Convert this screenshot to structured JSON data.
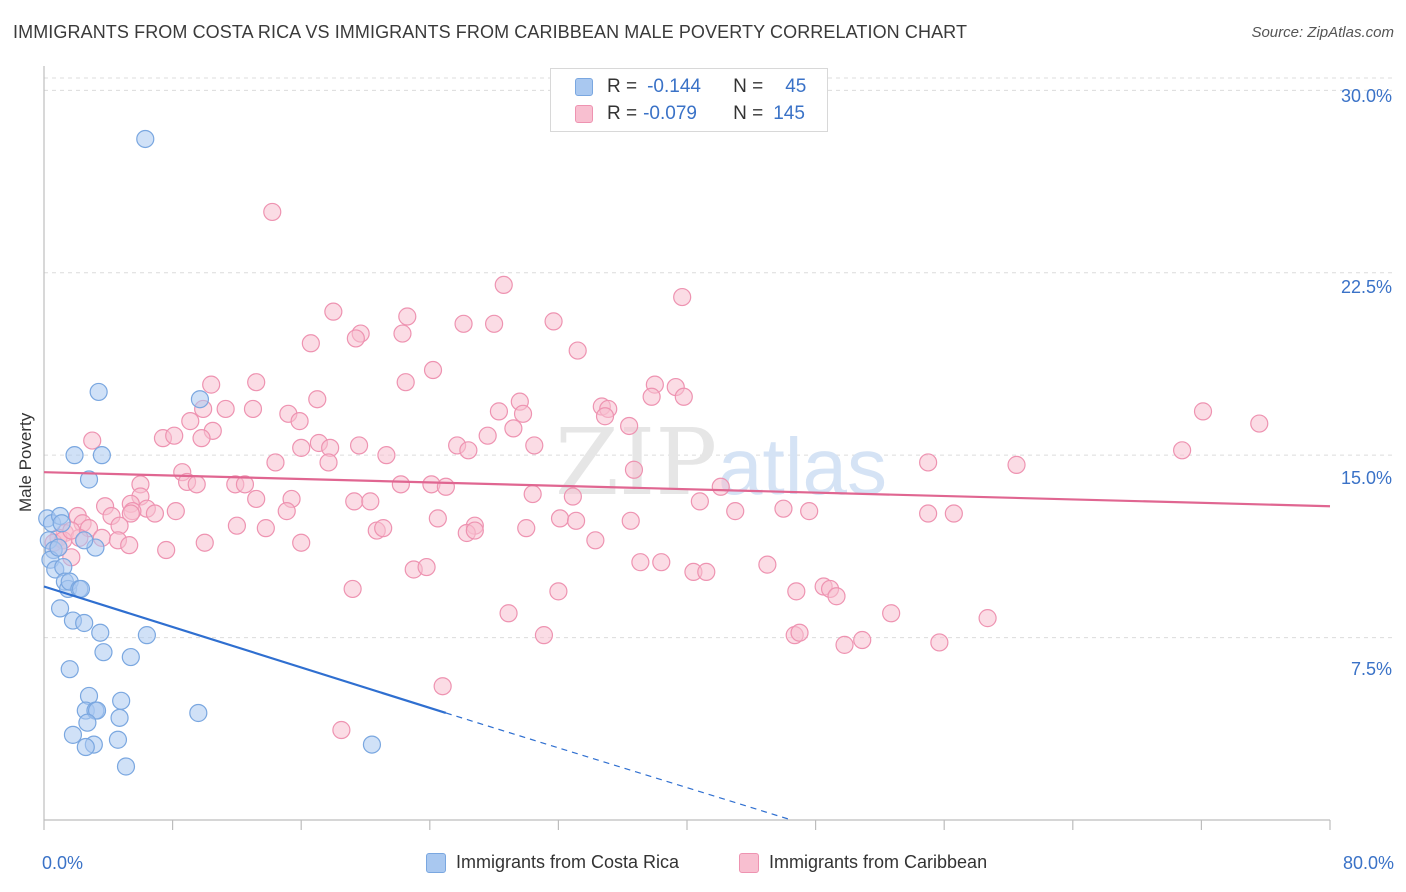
{
  "title": "IMMIGRANTS FROM COSTA RICA VS IMMIGRANTS FROM CARIBBEAN MALE POVERTY CORRELATION CHART",
  "source": "Source: ZipAtlas.com",
  "watermark": {
    "zip": "ZIP",
    "atlas": "atlas"
  },
  "legend": {
    "r_label": "R =",
    "n_label": "N =",
    "series": [
      {
        "r": "-0.144",
        "n": "45",
        "color": "#a9c8f0",
        "border": "#7aa7e0"
      },
      {
        "r": "-0.079",
        "n": "145",
        "color": "#f8bfd0",
        "border": "#ee93b1"
      }
    ]
  },
  "chart_data": {
    "type": "scatter",
    "title": "IMMIGRANTS FROM COSTA RICA VS IMMIGRANTS FROM CARIBBEAN MALE POVERTY CORRELATION CHART",
    "xlabel": "",
    "ylabel": "Male Poverty",
    "xlim": [
      0,
      80
    ],
    "ylim": [
      0,
      31
    ],
    "x_tick_labels": [
      "0.0%",
      "80.0%"
    ],
    "y_ticks": [
      7.5,
      15.0,
      22.5,
      30.0
    ],
    "y_tick_labels": [
      "7.5%",
      "15.0%",
      "22.5%",
      "30.0%"
    ],
    "grid": "horizontal dashed",
    "legend_placement": "top-center",
    "series": [
      {
        "name": "Immigrants from Costa Rica",
        "color": "#7aa7e0",
        "fill": "#a9c8f0",
        "trend": {
          "x0": 0,
          "y0": 9.6,
          "x1": 25,
          "y1": 4.4,
          "dash_to_x": 46.5,
          "dash_to_y": 0
        },
        "points": [
          [
            0.2,
            12.4
          ],
          [
            0.5,
            12.2
          ],
          [
            1.0,
            12.5
          ],
          [
            0.3,
            11.5
          ],
          [
            0.6,
            11.1
          ],
          [
            0.4,
            10.7
          ],
          [
            0.7,
            10.3
          ],
          [
            1.2,
            10.4
          ],
          [
            1.3,
            9.8
          ],
          [
            1.5,
            9.5
          ],
          [
            1.6,
            9.8
          ],
          [
            2.2,
            9.5
          ],
          [
            2.3,
            9.5
          ],
          [
            1.0,
            8.7
          ],
          [
            1.8,
            8.2
          ],
          [
            2.5,
            8.1
          ],
          [
            3.5,
            7.7
          ],
          [
            6.4,
            7.6
          ],
          [
            3.7,
            6.9
          ],
          [
            5.4,
            6.7
          ],
          [
            1.6,
            6.2
          ],
          [
            2.8,
            5.1
          ],
          [
            4.8,
            4.9
          ],
          [
            2.6,
            4.5
          ],
          [
            3.2,
            4.5
          ],
          [
            3.3,
            4.5
          ],
          [
            9.6,
            4.4
          ],
          [
            4.7,
            4.2
          ],
          [
            2.7,
            4.0
          ],
          [
            1.8,
            3.5
          ],
          [
            4.6,
            3.3
          ],
          [
            3.1,
            3.1
          ],
          [
            2.6,
            3.0
          ],
          [
            5.1,
            2.2
          ],
          [
            20.4,
            3.1
          ],
          [
            3.2,
            11.2
          ],
          [
            0.9,
            11.2
          ],
          [
            2.5,
            11.5
          ],
          [
            1.9,
            15.0
          ],
          [
            3.6,
            15.0
          ],
          [
            2.8,
            14.0
          ],
          [
            9.7,
            17.3
          ],
          [
            3.4,
            17.6
          ],
          [
            6.3,
            28.0
          ],
          [
            1.1,
            12.2
          ]
        ]
      },
      {
        "name": "Immigrants from Caribbean",
        "color": "#ee93b1",
        "fill": "#f8bfd0",
        "trend": {
          "x0": 0,
          "y0": 14.3,
          "x1": 80,
          "y1": 12.9
        },
        "points": [
          [
            14.2,
            25.0
          ],
          [
            28.6,
            22.0
          ],
          [
            39.7,
            21.5
          ],
          [
            18.0,
            20.9
          ],
          [
            22.6,
            20.7
          ],
          [
            31.7,
            20.5
          ],
          [
            26.1,
            20.4
          ],
          [
            28.0,
            20.4
          ],
          [
            19.7,
            20.0
          ],
          [
            19.4,
            19.8
          ],
          [
            22.3,
            20.0
          ],
          [
            16.6,
            19.6
          ],
          [
            33.2,
            19.3
          ],
          [
            24.2,
            18.5
          ],
          [
            22.5,
            18.0
          ],
          [
            13.2,
            18.0
          ],
          [
            10.4,
            17.9
          ],
          [
            38.0,
            17.9
          ],
          [
            39.3,
            17.8
          ],
          [
            37.8,
            17.4
          ],
          [
            39.8,
            17.4
          ],
          [
            17.0,
            17.3
          ],
          [
            29.6,
            17.2
          ],
          [
            34.7,
            17.0
          ],
          [
            11.3,
            16.9
          ],
          [
            9.9,
            16.9
          ],
          [
            13.0,
            16.9
          ],
          [
            15.2,
            16.7
          ],
          [
            28.3,
            16.8
          ],
          [
            35.1,
            16.9
          ],
          [
            34.9,
            16.6
          ],
          [
            29.8,
            16.7
          ],
          [
            9.1,
            16.4
          ],
          [
            15.9,
            16.4
          ],
          [
            36.4,
            16.2
          ],
          [
            29.2,
            16.1
          ],
          [
            72.1,
            16.8
          ],
          [
            75.6,
            16.3
          ],
          [
            10.5,
            16.0
          ],
          [
            27.6,
            15.8
          ],
          [
            7.4,
            15.7
          ],
          [
            8.1,
            15.8
          ],
          [
            9.8,
            15.7
          ],
          [
            3.0,
            15.6
          ],
          [
            17.1,
            15.5
          ],
          [
            19.6,
            15.4
          ],
          [
            25.7,
            15.4
          ],
          [
            16.0,
            15.3
          ],
          [
            30.5,
            15.4
          ],
          [
            17.8,
            15.3
          ],
          [
            26.4,
            15.2
          ],
          [
            70.8,
            15.2
          ],
          [
            21.3,
            15.0
          ],
          [
            14.4,
            14.7
          ],
          [
            17.7,
            14.7
          ],
          [
            55.0,
            14.7
          ],
          [
            60.5,
            14.6
          ],
          [
            36.7,
            14.4
          ],
          [
            8.6,
            14.3
          ],
          [
            8.9,
            13.9
          ],
          [
            6.0,
            13.8
          ],
          [
            11.9,
            13.8
          ],
          [
            12.5,
            13.8
          ],
          [
            9.5,
            13.8
          ],
          [
            22.2,
            13.8
          ],
          [
            24.1,
            13.8
          ],
          [
            25.0,
            13.7
          ],
          [
            42.1,
            13.7
          ],
          [
            30.4,
            13.4
          ],
          [
            6.0,
            13.3
          ],
          [
            32.9,
            13.3
          ],
          [
            13.2,
            13.2
          ],
          [
            15.4,
            13.2
          ],
          [
            19.3,
            13.1
          ],
          [
            20.3,
            13.1
          ],
          [
            40.8,
            13.1
          ],
          [
            5.4,
            13.0
          ],
          [
            3.8,
            12.9
          ],
          [
            6.4,
            12.8
          ],
          [
            5.5,
            12.7
          ],
          [
            8.2,
            12.7
          ],
          [
            15.1,
            12.7
          ],
          [
            43.0,
            12.7
          ],
          [
            46.0,
            12.8
          ],
          [
            6.9,
            12.6
          ],
          [
            2.1,
            12.5
          ],
          [
            4.2,
            12.5
          ],
          [
            5.4,
            12.6
          ],
          [
            47.6,
            12.7
          ],
          [
            55.0,
            12.6
          ],
          [
            56.6,
            12.6
          ],
          [
            24.5,
            12.4
          ],
          [
            32.1,
            12.4
          ],
          [
            33.1,
            12.3
          ],
          [
            36.5,
            12.3
          ],
          [
            2.4,
            12.2
          ],
          [
            2.8,
            12.0
          ],
          [
            4.7,
            12.1
          ],
          [
            12.0,
            12.1
          ],
          [
            13.8,
            12.0
          ],
          [
            26.8,
            12.1
          ],
          [
            30.0,
            12.0
          ],
          [
            20.7,
            11.9
          ],
          [
            21.1,
            12.0
          ],
          [
            26.3,
            11.8
          ],
          [
            26.8,
            11.9
          ],
          [
            1.3,
            11.8
          ],
          [
            0.9,
            11.6
          ],
          [
            0.6,
            11.4
          ],
          [
            2.2,
            11.6
          ],
          [
            3.6,
            11.6
          ],
          [
            4.6,
            11.5
          ],
          [
            5.3,
            11.3
          ],
          [
            10.0,
            11.4
          ],
          [
            16.0,
            11.4
          ],
          [
            34.3,
            11.5
          ],
          [
            7.6,
            11.1
          ],
          [
            1.2,
            11.5
          ],
          [
            1.7,
            10.8
          ],
          [
            37.1,
            10.6
          ],
          [
            38.4,
            10.6
          ],
          [
            23.0,
            10.3
          ],
          [
            23.8,
            10.4
          ],
          [
            40.4,
            10.2
          ],
          [
            41.2,
            10.2
          ],
          [
            45.0,
            10.5
          ],
          [
            19.2,
            9.5
          ],
          [
            32.0,
            9.4
          ],
          [
            46.8,
            9.4
          ],
          [
            48.5,
            9.6
          ],
          [
            48.9,
            9.5
          ],
          [
            49.3,
            9.2
          ],
          [
            28.9,
            8.5
          ],
          [
            52.7,
            8.5
          ],
          [
            58.7,
            8.3
          ],
          [
            31.1,
            7.6
          ],
          [
            46.7,
            7.6
          ],
          [
            49.8,
            7.2
          ],
          [
            50.9,
            7.4
          ],
          [
            55.7,
            7.3
          ],
          [
            24.8,
            5.5
          ],
          [
            18.5,
            3.7
          ],
          [
            1.7,
            11.9
          ],
          [
            0.9,
            11.2
          ],
          [
            47.0,
            7.7
          ]
        ]
      }
    ]
  },
  "bottom_legend": {
    "items": [
      {
        "label": "Immigrants from Costa Rica"
      },
      {
        "label": "Immigrants from Caribbean"
      }
    ]
  }
}
